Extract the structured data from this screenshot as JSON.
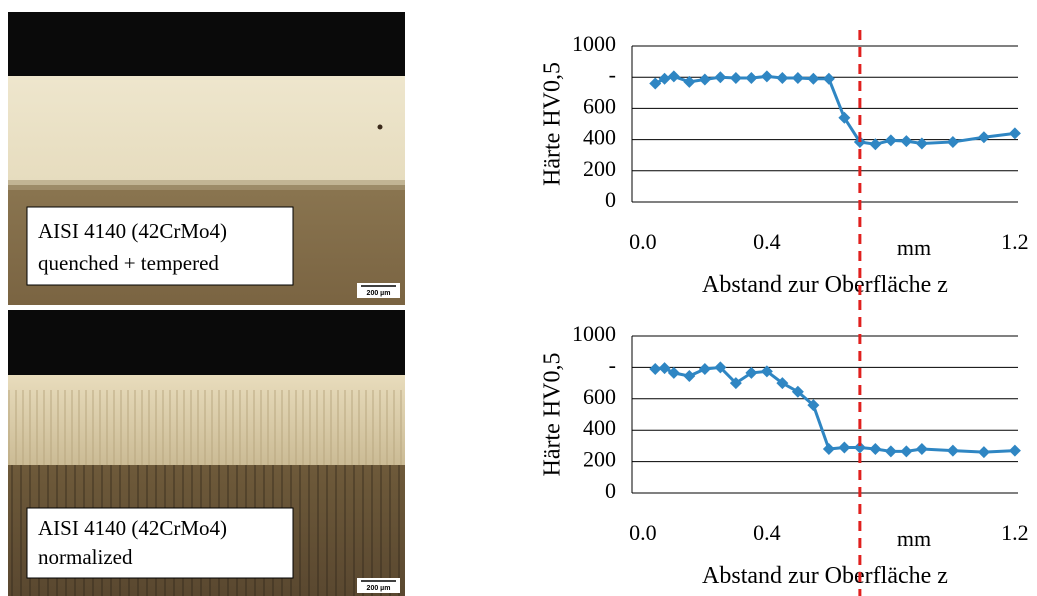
{
  "chart_data": [
    {
      "type": "line",
      "xlabel": "Abstand zur Oberfläche z",
      "ylabel": "Härte HV0,5",
      "color": "#2f86c3",
      "x": [
        0.04,
        0.07,
        0.1,
        0.15,
        0.2,
        0.25,
        0.3,
        0.35,
        0.4,
        0.45,
        0.5,
        0.55,
        0.6,
        0.65,
        0.7,
        0.75,
        0.8,
        0.85,
        0.9,
        1.0,
        1.1,
        1.2
      ],
      "values": [
        760,
        790,
        805,
        770,
        785,
        800,
        795,
        795,
        805,
        795,
        795,
        790,
        790,
        540,
        385,
        370,
        395,
        390,
        375,
        385,
        415,
        440
      ],
      "xlim": [
        -0.035,
        1.21
      ],
      "ylim": [
        0,
        1000
      ],
      "xticks": [
        {
          "value": 0,
          "label": "0.0"
        },
        0.4,
        {
          "value": 0.8,
          "label": "mm"
        },
        1.2
      ],
      "yticks": [
        0,
        200,
        400,
        600,
        {
          "value": 800,
          "label": "-"
        },
        1000
      ],
      "grid": true,
      "vline": {
        "x": 0.7,
        "color": "#e0201e"
      }
    },
    {
      "type": "line",
      "xlabel": "Abstand zur Oberfläche z",
      "ylabel": "Härte HV0,5",
      "color": "#2f86c3",
      "x": [
        0.04,
        0.07,
        0.1,
        0.15,
        0.2,
        0.25,
        0.3,
        0.35,
        0.4,
        0.45,
        0.5,
        0.55,
        0.6,
        0.65,
        0.7,
        0.75,
        0.8,
        0.85,
        0.9,
        1.0,
        1.1,
        1.2
      ],
      "values": [
        790,
        795,
        765,
        745,
        790,
        800,
        700,
        765,
        775,
        700,
        645,
        560,
        280,
        290,
        290,
        280,
        265,
        265,
        280,
        270,
        260,
        270
      ],
      "xlim": [
        -0.035,
        1.21
      ],
      "ylim": [
        0,
        1000
      ],
      "xticks": [
        {
          "value": 0,
          "label": "0.0"
        },
        0.4,
        {
          "value": 0.8,
          "label": "mm"
        },
        1.2
      ],
      "yticks": [
        0,
        200,
        400,
        600,
        {
          "value": 800,
          "label": "-"
        },
        1000
      ],
      "grid": true,
      "vline": {
        "x": 0.7,
        "color": "#e0201e"
      }
    }
  ],
  "micrographs": [
    {
      "label": [
        "AISI 4140 (42CrMo4)",
        "quenched + tempered"
      ],
      "scale_bar": "200 µm"
    },
    {
      "label": [
        "AISI 4140 (42CrMo4)",
        "normalized"
      ],
      "scale_bar": "200 µm"
    }
  ]
}
